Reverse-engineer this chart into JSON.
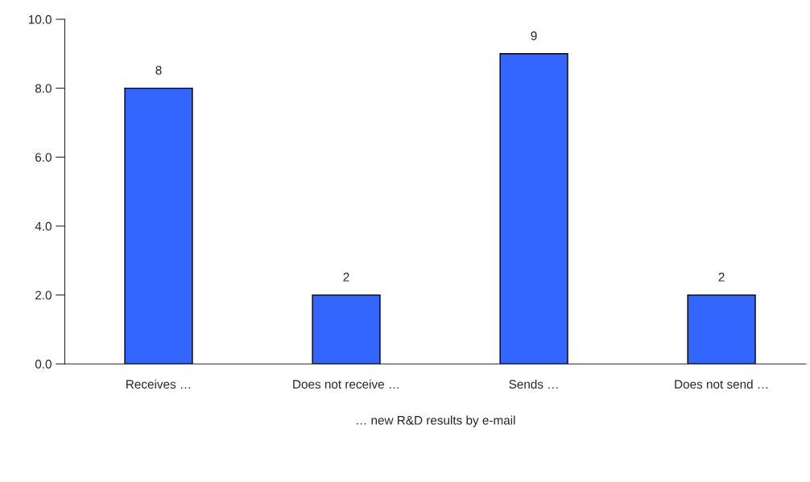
{
  "chart_data": {
    "type": "bar",
    "xlabel": "… new R&D results by e-mail",
    "categories": [
      "Receives …",
      "Does not receive …",
      "Sends …",
      "Does not send …"
    ],
    "values": [
      8,
      2,
      9,
      2
    ],
    "color": "#3366ff",
    "ylim": [
      0,
      10
    ],
    "yticks": [
      {
        "value": 0,
        "label": "0.0"
      },
      {
        "value": 2,
        "label": "2.0"
      },
      {
        "value": 4,
        "label": "4.0"
      },
      {
        "value": 6,
        "label": "6.0"
      },
      {
        "value": 8,
        "label": "8.0"
      },
      {
        "value": 10,
        "label": "10.0"
      }
    ],
    "data_labels": true,
    "grid": false,
    "legend": false
  }
}
